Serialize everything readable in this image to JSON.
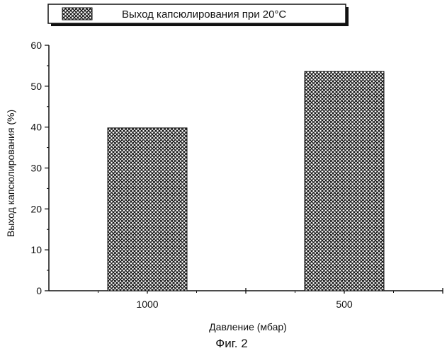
{
  "chart_data": {
    "type": "bar",
    "categories": [
      "1000",
      "500"
    ],
    "series": [
      {
        "name": "Выход капсюлирования при 20°C",
        "values": [
          39.8,
          53.6
        ],
        "color": "#111111",
        "pattern": "crosshatch"
      }
    ],
    "xlabel": "Давление (мбар)",
    "ylabel": "Выход капсюлирования (%)",
    "ylim": [
      0,
      60
    ],
    "yticks": [
      0,
      10,
      20,
      30,
      40,
      50,
      60
    ],
    "grid": false,
    "legend_position": "top"
  },
  "figure_caption": "Фиг. 2"
}
